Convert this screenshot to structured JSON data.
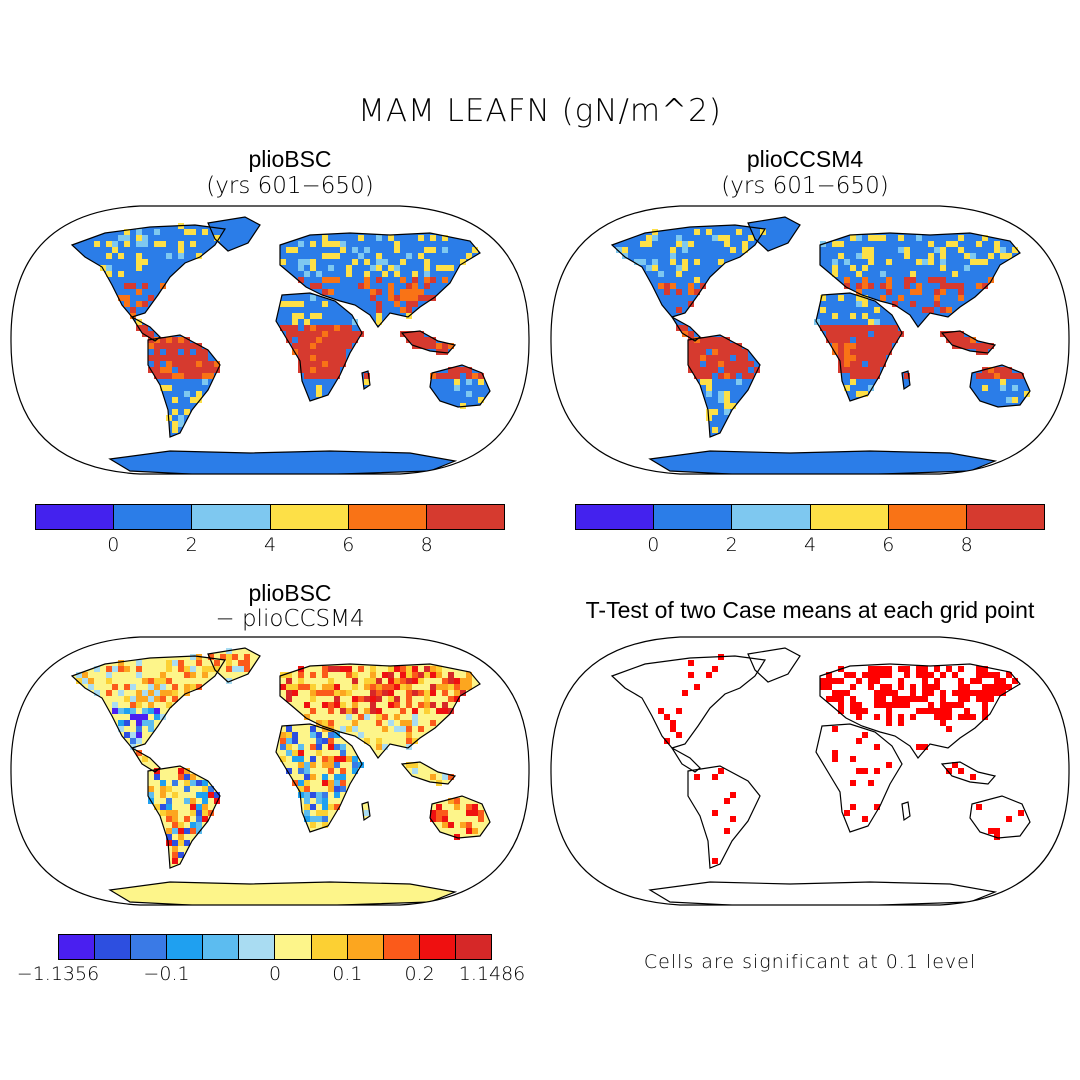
{
  "figure": {
    "title": "MAM LEAFN (gN/m^2)"
  },
  "panels": [
    {
      "id": "plioBSC",
      "title": "plioBSC",
      "subtitle": "(yrs 601−650)",
      "colorbar": {
        "colors": [
          "#4422ee",
          "#2b7de8",
          "#7ec8f0",
          "#fde047",
          "#f97316",
          "#d63a2f"
        ],
        "ticks": [
          "0",
          "2",
          "4",
          "6",
          "8"
        ]
      }
    },
    {
      "id": "plioCCSM4",
      "title": "plioCCSM4",
      "subtitle": "(yrs 601−650)",
      "colorbar": {
        "colors": [
          "#4422ee",
          "#2b7de8",
          "#7ec8f0",
          "#fde047",
          "#f97316",
          "#d63a2f"
        ],
        "ticks": [
          "0",
          "2",
          "4",
          "6",
          "8"
        ]
      }
    },
    {
      "id": "difference",
      "title": "plioBSC",
      "subtitle": "− plioCCSM4",
      "colorbar": {
        "colors": [
          "#4a1ff0",
          "#2d4fe0",
          "#3a7ae6",
          "#1fa0f0",
          "#5cbcf0",
          "#a9dcf2",
          "#fdf58a",
          "#fcd033",
          "#fca61f",
          "#fb5a1a",
          "#ef1010",
          "#d62828"
        ],
        "ticks": [
          "−1.1356",
          "−0.1",
          "0",
          "0.1",
          "0.2",
          "1.1486"
        ]
      }
    },
    {
      "id": "ttest",
      "title": "T-Test of two Case means at each grid point",
      "note": "Cells are significant at 0.1 level",
      "marker_color": "#ff0000"
    }
  ]
}
